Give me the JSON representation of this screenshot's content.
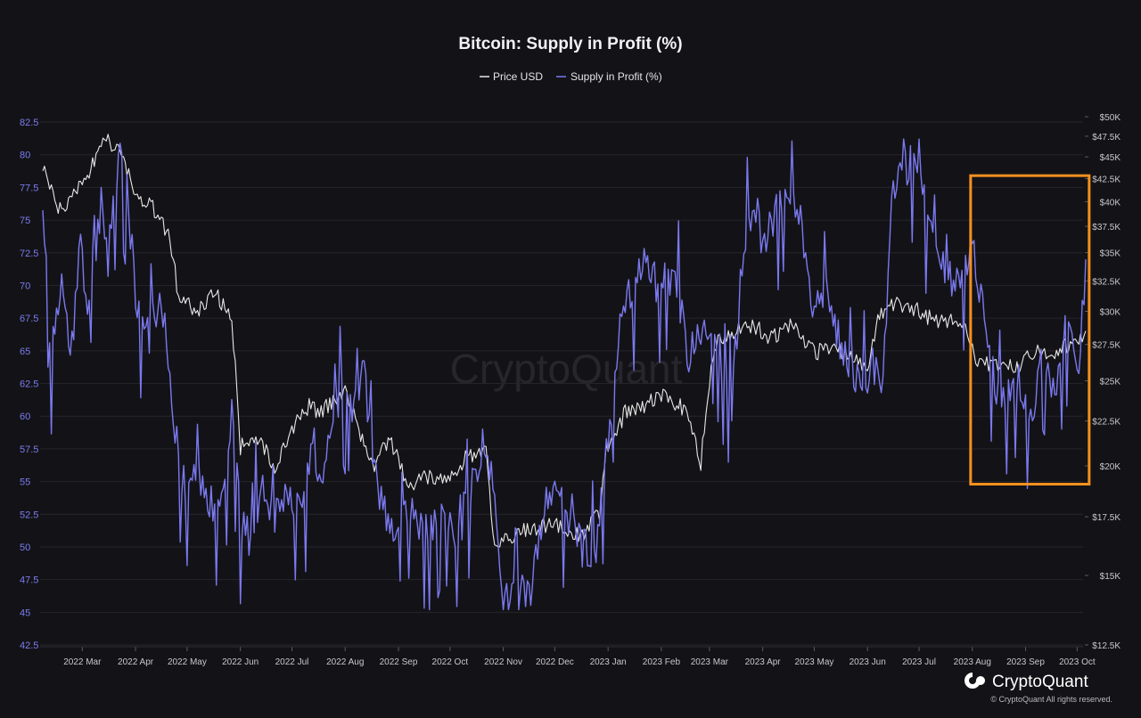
{
  "chart_data": {
    "type": "line",
    "title": "Bitcoin: Supply in Profit (%)",
    "legend": {
      "placement": "top-center",
      "entries": [
        "Price USD",
        "Supply in Profit (%)"
      ]
    },
    "grid": true,
    "x_ticks": [
      "2022 Mar",
      "2022 Apr",
      "2022 May",
      "2022 Jun",
      "2022 Jul",
      "2022 Aug",
      "2022 Sep",
      "2022 Oct",
      "2022 Nov",
      "2022 Dec",
      "2023 Jan",
      "2023 Feb",
      "2023 Mar",
      "2023 Apr",
      "2023 May",
      "2023 Jun",
      "2023 Jul",
      "2023 Aug",
      "2023 Sep",
      "2023 Oct"
    ],
    "left_axis": {
      "ylim": [
        42.5,
        82.5
      ],
      "ticks": [
        "82.5",
        "80",
        "77.5",
        "75",
        "72.5",
        "70",
        "67.5",
        "65",
        "62.5",
        "60",
        "57.5",
        "55",
        "52.5",
        "50",
        "47.5",
        "45",
        "42.5"
      ]
    },
    "right_axis": {
      "scale": "log",
      "ylim": [
        12500,
        50000
      ],
      "tick_values": [
        50000,
        47500,
        45000,
        42500,
        40000,
        37500,
        35000,
        32500,
        30000,
        27500,
        25000,
        22500,
        20000,
        17500,
        15000,
        12500
      ],
      "ticks": [
        "$50K",
        "$47.5K",
        "$45K",
        "$42.5K",
        "$40K",
        "$37.5K",
        "$35K",
        "$32.5K",
        "$30K",
        "$27.5K",
        "$25K",
        "$22.5K",
        "$20K",
        "$17.5K",
        "$15K",
        "$12.5K"
      ]
    },
    "x_range": [
      "2022-02-20",
      "2023-10-20"
    ],
    "series": [
      {
        "name": "Price USD",
        "axis": "right",
        "color": "#e8e8e8",
        "x": [
          "2022-02-20",
          "2022-03-01",
          "2022-03-10",
          "2022-03-20",
          "2022-03-28",
          "2022-04-05",
          "2022-04-15",
          "2022-04-25",
          "2022-05-05",
          "2022-05-10",
          "2022-05-20",
          "2022-06-01",
          "2022-06-10",
          "2022-06-15",
          "2022-06-25",
          "2022-07-05",
          "2022-07-15",
          "2022-07-25",
          "2022-08-01",
          "2022-08-10",
          "2022-08-15",
          "2022-08-25",
          "2022-09-01",
          "2022-09-10",
          "2022-09-20",
          "2022-10-01",
          "2022-10-15",
          "2022-10-25",
          "2022-11-05",
          "2022-11-09",
          "2022-11-20",
          "2022-12-01",
          "2022-12-15",
          "2022-12-31",
          "2023-01-10",
          "2023-01-14",
          "2023-01-25",
          "2023-02-05",
          "2023-02-16",
          "2023-03-01",
          "2023-03-10",
          "2023-03-18",
          "2023-03-30",
          "2023-04-10",
          "2023-04-20",
          "2023-05-01",
          "2023-05-15",
          "2023-06-01",
          "2023-06-15",
          "2023-06-22",
          "2023-07-01",
          "2023-07-15",
          "2023-07-25",
          "2023-08-10",
          "2023-08-17",
          "2023-09-01",
          "2023-09-11",
          "2023-09-20",
          "2023-10-01",
          "2023-10-10",
          "2023-10-20"
        ],
        "values": [
          44000,
          39000,
          41000,
          43500,
          47300,
          46000,
          41000,
          39500,
          36500,
          31000,
          30000,
          31500,
          29000,
          21000,
          21500,
          20000,
          22000,
          23500,
          23000,
          24000,
          24200,
          21500,
          20000,
          21500,
          19000,
          19500,
          19200,
          20500,
          21000,
          16500,
          16600,
          17000,
          17200,
          16700,
          17700,
          20800,
          23000,
          23500,
          24000,
          23200,
          20200,
          27500,
          28500,
          28800,
          28000,
          29000,
          27000,
          27000,
          25500,
          30000,
          30500,
          30000,
          29300,
          29400,
          26300,
          26000,
          25800,
          27000,
          27000,
          27500,
          28500
        ]
      },
      {
        "name": "Supply in Profit (%)",
        "axis": "left",
        "color": "#7b79f0",
        "x": [
          "2022-02-20",
          "2022-02-25",
          "2022-03-03",
          "2022-03-08",
          "2022-03-14",
          "2022-03-20",
          "2022-03-26",
          "2022-03-30",
          "2022-04-05",
          "2022-04-10",
          "2022-04-16",
          "2022-04-22",
          "2022-04-30",
          "2022-05-06",
          "2022-05-10",
          "2022-05-14",
          "2022-05-20",
          "2022-05-26",
          "2022-06-01",
          "2022-06-06",
          "2022-06-10",
          "2022-06-15",
          "2022-06-20",
          "2022-06-28",
          "2022-07-05",
          "2022-07-12",
          "2022-07-20",
          "2022-07-26",
          "2022-08-01",
          "2022-08-08",
          "2022-08-14",
          "2022-08-20",
          "2022-08-26",
          "2022-09-02",
          "2022-09-10",
          "2022-09-18",
          "2022-09-26",
          "2022-10-03",
          "2022-10-12",
          "2022-10-20",
          "2022-10-28",
          "2022-11-04",
          "2022-11-09",
          "2022-11-14",
          "2022-11-22",
          "2022-11-30",
          "2022-12-08",
          "2022-12-16",
          "2022-12-24",
          "2022-12-31",
          "2023-01-08",
          "2023-01-14",
          "2023-01-21",
          "2023-01-28",
          "2023-02-05",
          "2023-02-12",
          "2023-02-18",
          "2023-02-24",
          "2023-03-03",
          "2023-03-10",
          "2023-03-16",
          "2023-03-21",
          "2023-03-28",
          "2023-04-04",
          "2023-04-11",
          "2023-04-15",
          "2023-04-22",
          "2023-04-29",
          "2023-05-07",
          "2023-05-14",
          "2023-05-22",
          "2023-05-29",
          "2023-06-05",
          "2023-06-13",
          "2023-06-19",
          "2023-06-24",
          "2023-06-30",
          "2023-07-07",
          "2023-07-13",
          "2023-07-20",
          "2023-07-27",
          "2023-08-03",
          "2023-08-10",
          "2023-08-17",
          "2023-08-24",
          "2023-08-31",
          "2023-09-07",
          "2023-09-11",
          "2023-09-18",
          "2023-09-25",
          "2023-10-02",
          "2023-10-09",
          "2023-10-16",
          "2023-10-20"
        ],
        "values": [
          76,
          65,
          70,
          64,
          73,
          67,
          77,
          72,
          80,
          77,
          68,
          66,
          69,
          62,
          57,
          54,
          56,
          54,
          53,
          55,
          60,
          52,
          50.5,
          54,
          52,
          55,
          52,
          57,
          54,
          60,
          62,
          61,
          63,
          55,
          51,
          54,
          52,
          51,
          53,
          51,
          55,
          58,
          55,
          46,
          47,
          46,
          53,
          54,
          52,
          50,
          49,
          57,
          66,
          69,
          72,
          70,
          71,
          70,
          64,
          66,
          67,
          65,
          61,
          74,
          76,
          73,
          75,
          78,
          76,
          68,
          70,
          66,
          64,
          62,
          64,
          63,
          78,
          79,
          80,
          75,
          73,
          70,
          71,
          72,
          65,
          61,
          62,
          63,
          60,
          65,
          62,
          67,
          64,
          72
        ]
      }
    ],
    "annotations": [
      {
        "type": "highlight-box",
        "color": "#f5901f",
        "x_range": [
          "2023-08-14",
          "2023-10-22"
        ],
        "y_range": [
          54.8,
          78.4
        ]
      }
    ]
  },
  "watermark": "CryptoQuant",
  "footer": {
    "brand": "CryptoQuant",
    "copyright": "© CryptoQuant All rights reserved."
  }
}
